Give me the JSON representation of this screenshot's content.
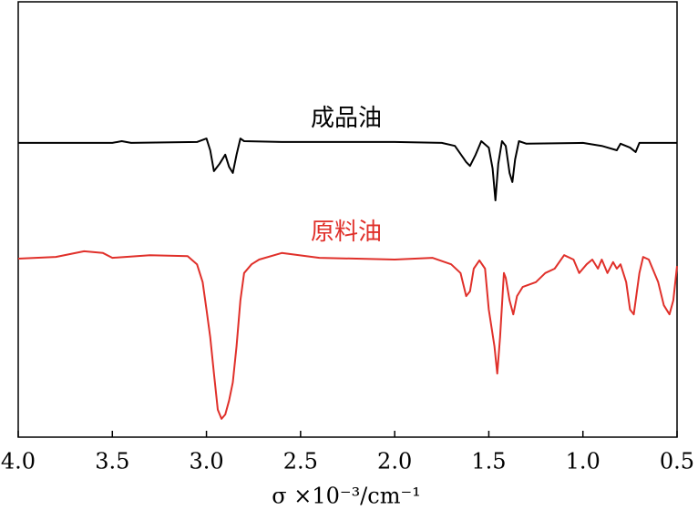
{
  "chart_data": {
    "type": "line",
    "xlabel": "σ ×10⁻³/cm⁻¹",
    "xlim": [
      4.0,
      0.5
    ],
    "xticks": [
      {
        "value": 4.0,
        "label": "4.0"
      },
      3.5,
      {
        "value": 3.0,
        "label": "3.0"
      },
      2.5,
      {
        "value": 2.0,
        "label": "2.0"
      },
      1.5,
      {
        "value": 1.0,
        "label": "1.0"
      },
      0.5
    ],
    "ylim": [
      0,
      100
    ],
    "series": [
      {
        "name": "成品油",
        "color": "#000000",
        "x": [
          4.0,
          3.5,
          3.45,
          3.4,
          3.05,
          3.0,
          2.98,
          2.96,
          2.93,
          2.9,
          2.88,
          2.86,
          2.84,
          2.82,
          2.8,
          2.6,
          2.0,
          1.75,
          1.68,
          1.62,
          1.6,
          1.57,
          1.54,
          1.5,
          1.48,
          1.465,
          1.45,
          1.43,
          1.41,
          1.39,
          1.375,
          1.36,
          1.34,
          1.3,
          1.0,
          0.9,
          0.82,
          0.8,
          0.75,
          0.72,
          0.7,
          0.5
        ],
        "values": [
          67.6,
          67.6,
          68.0,
          67.6,
          67.8,
          68.6,
          65.9,
          61.1,
          62.8,
          64.9,
          62.1,
          60.7,
          64.9,
          68.6,
          68.0,
          67.8,
          67.8,
          67.6,
          66.9,
          63.2,
          62.3,
          64.9,
          68.0,
          66.5,
          61.7,
          54.4,
          62.8,
          68.0,
          66.9,
          60.7,
          58.6,
          63.8,
          68.0,
          67.4,
          67.6,
          66.9,
          65.9,
          67.4,
          66.5,
          65.5,
          67.6,
          67.6
        ]
      },
      {
        "name": "原料油",
        "color": "#e0302a",
        "x": [
          4.0,
          3.8,
          3.65,
          3.55,
          3.5,
          3.3,
          3.1,
          3.05,
          3.02,
          3.0,
          2.98,
          2.96,
          2.94,
          2.92,
          2.9,
          2.88,
          2.86,
          2.84,
          2.82,
          2.8,
          2.76,
          2.72,
          2.6,
          2.4,
          2.0,
          1.8,
          1.7,
          1.65,
          1.62,
          1.6,
          1.58,
          1.55,
          1.52,
          1.5,
          1.47,
          1.455,
          1.44,
          1.42,
          1.41,
          1.39,
          1.37,
          1.35,
          1.32,
          1.25,
          1.2,
          1.15,
          1.1,
          1.05,
          1.02,
          0.98,
          0.95,
          0.92,
          0.9,
          0.87,
          0.84,
          0.82,
          0.8,
          0.77,
          0.75,
          0.73,
          0.7,
          0.68,
          0.65,
          0.6,
          0.57,
          0.54,
          0.52,
          0.5
        ],
        "values": [
          41.0,
          41.4,
          42.7,
          42.3,
          41.2,
          41.8,
          41.6,
          39.7,
          35.6,
          29.3,
          23.0,
          14.6,
          6.3,
          4.2,
          5.2,
          8.4,
          12.6,
          20.9,
          31.4,
          37.7,
          39.7,
          40.8,
          42.3,
          41.2,
          40.8,
          41.2,
          39.7,
          37.7,
          32.4,
          33.5,
          38.7,
          40.6,
          38.7,
          29.3,
          20.9,
          14.6,
          23.0,
          37.7,
          36.6,
          31.4,
          28.2,
          32.4,
          34.5,
          35.6,
          37.7,
          38.7,
          41.8,
          40.8,
          37.7,
          39.7,
          40.8,
          38.7,
          40.8,
          37.7,
          40.2,
          38.7,
          39.7,
          35.6,
          29.3,
          28.2,
          37.7,
          41.4,
          40.8,
          35.6,
          30.3,
          28.2,
          31.4,
          39.3
        ]
      }
    ]
  }
}
